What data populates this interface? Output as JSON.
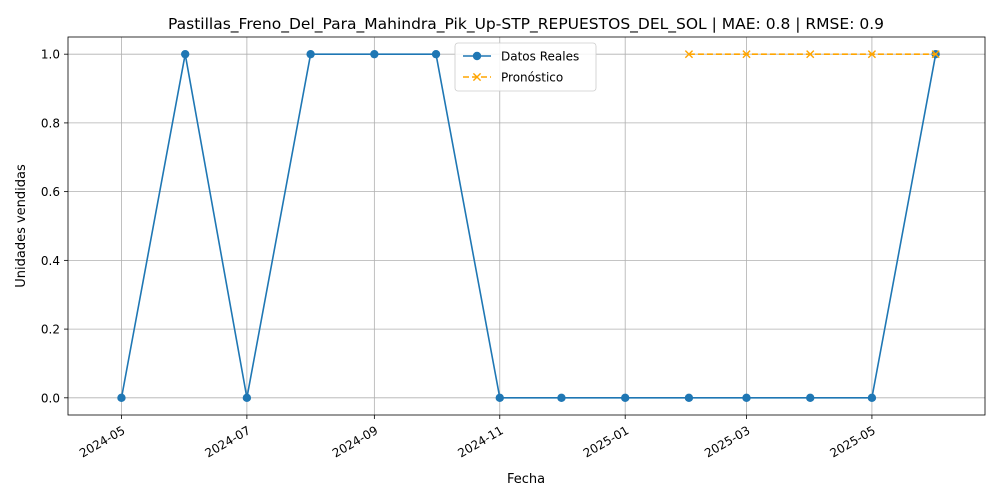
{
  "chart_data": {
    "type": "line",
    "title": "Pastillas_Freno_Del_Para_Mahindra_Pik_Up-STP_REPUESTOS_DEL_SOL | MAE: 0.8 | RMSE: 0.9",
    "xlabel": "Fecha",
    "ylabel": "Unidades vendidas",
    "xlim": [
      "2024-04-05",
      "2025-06-25"
    ],
    "ylim": [
      -0.05,
      1.05
    ],
    "x_ticks": [
      "2024-05",
      "2024-07",
      "2024-09",
      "2024-11",
      "2025-01",
      "2025-03",
      "2025-05"
    ],
    "y_ticks": [
      "0.0",
      "0.2",
      "0.4",
      "0.6",
      "0.8",
      "1.0"
    ],
    "grid": true,
    "legend_position": "top-center",
    "series": [
      {
        "name": "Datos Reales",
        "color": "#1f77b4",
        "line_style": "solid",
        "marker": "circle",
        "x": [
          "2024-05-01",
          "2024-06-01",
          "2024-07-01",
          "2024-08-01",
          "2024-09-01",
          "2024-10-01",
          "2024-11-01",
          "2024-12-01",
          "2025-01-01",
          "2025-02-01",
          "2025-03-01",
          "2025-04-01",
          "2025-05-01",
          "2025-06-01"
        ],
        "values": [
          0,
          1,
          0,
          1,
          1,
          1,
          0,
          0,
          0,
          0,
          0,
          0,
          0,
          1
        ]
      },
      {
        "name": "Pronóstico",
        "color": "#ffa500",
        "line_style": "dashed",
        "marker": "x",
        "x": [
          "2025-02-01",
          "2025-03-01",
          "2025-04-01",
          "2025-05-01",
          "2025-06-01"
        ],
        "values": [
          1,
          1,
          1,
          1,
          1
        ]
      }
    ]
  }
}
